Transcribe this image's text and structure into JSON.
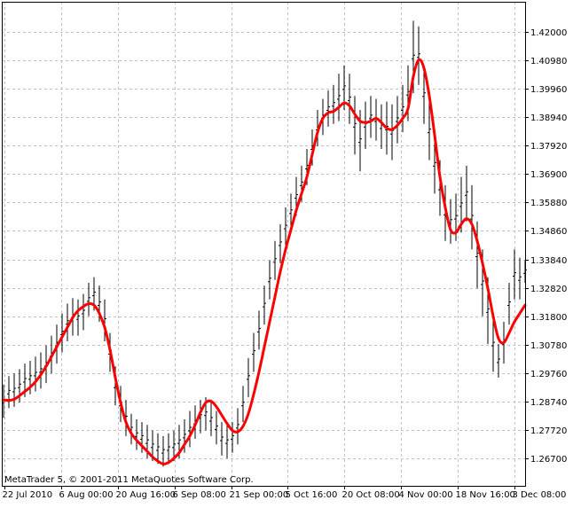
{
  "chart_data": {
    "type": "line",
    "copyright": "MetaTrader 5, © 2001-2011 MetaQuotes Software Corp.",
    "price_range": [
      1.259,
      1.426
    ],
    "y_ticks": [
      "1.42000",
      "1.40980",
      "1.39960",
      "1.38940",
      "1.37920",
      "1.36900",
      "1.35880",
      "1.34860",
      "1.33840",
      "1.32820",
      "1.31800",
      "1.30780",
      "1.29760",
      "1.28740",
      "1.27720",
      "1.26700"
    ],
    "x_ticks": [
      "22 Jul 2010",
      "6 Aug 00:00",
      "20 Aug 16:00",
      "6 Sep 08:00",
      "21 Sep 00:00",
      "5 Oct 16:00",
      "20 Oct 08:00",
      "4 Nov 00:00",
      "18 Nov 16:00",
      "3 Dec 08:00"
    ],
    "grid": true,
    "colors": {
      "price": "#000000",
      "average": "#ff0000",
      "grid": "#c0c0c0",
      "frame": "#000000"
    },
    "series": [
      {
        "kind": "bars",
        "high_low": [
          [
            1.2935,
            1.2815
          ],
          [
            1.2965,
            1.285
          ],
          [
            1.2975,
            1.2855
          ],
          [
            1.299,
            1.287
          ],
          [
            1.301,
            1.289
          ],
          [
            1.302,
            1.29
          ],
          [
            1.3035,
            1.291
          ],
          [
            1.305,
            1.292
          ],
          [
            1.3075,
            1.294
          ],
          [
            1.311,
            1.2975
          ],
          [
            1.315,
            1.301
          ],
          [
            1.319,
            1.305
          ],
          [
            1.3225,
            1.309
          ],
          [
            1.3245,
            1.311
          ],
          [
            1.324,
            1.311
          ],
          [
            1.326,
            1.313
          ],
          [
            1.33,
            1.318
          ],
          [
            1.332,
            1.32
          ],
          [
            1.329,
            1.316
          ],
          [
            1.324,
            1.309
          ],
          [
            1.312,
            1.298
          ],
          [
            1.3,
            1.286
          ],
          [
            1.293,
            1.28
          ],
          [
            1.288,
            1.275
          ],
          [
            1.283,
            1.272
          ],
          [
            1.281,
            1.27
          ],
          [
            1.28,
            1.269
          ],
          [
            1.279,
            1.267
          ],
          [
            1.277,
            1.266
          ],
          [
            1.276,
            1.265
          ],
          [
            1.275,
            1.264
          ],
          [
            1.276,
            1.265
          ],
          [
            1.277,
            1.266
          ],
          [
            1.279,
            1.267
          ],
          [
            1.281,
            1.269
          ],
          [
            1.284,
            1.271
          ],
          [
            1.286,
            1.274
          ],
          [
            1.288,
            1.276
          ],
          [
            1.289,
            1.277
          ],
          [
            1.287,
            1.275
          ],
          [
            1.284,
            1.272
          ],
          [
            1.28,
            1.268
          ],
          [
            1.279,
            1.267
          ],
          [
            1.28,
            1.269
          ],
          [
            1.285,
            1.272
          ],
          [
            1.293,
            1.28
          ],
          [
            1.303,
            1.289
          ],
          [
            1.312,
            1.298
          ],
          [
            1.32,
            1.306
          ],
          [
            1.329,
            1.315
          ],
          [
            1.338,
            1.324
          ],
          [
            1.345,
            1.331
          ],
          [
            1.351,
            1.337
          ],
          [
            1.357,
            1.343
          ],
          [
            1.362,
            1.349
          ],
          [
            1.368,
            1.354
          ],
          [
            1.372,
            1.359
          ],
          [
            1.378,
            1.365
          ],
          [
            1.385,
            1.372
          ],
          [
            1.392,
            1.379
          ],
          [
            1.396,
            1.383
          ],
          [
            1.399,
            1.386
          ],
          [
            1.401,
            1.387
          ],
          [
            1.405,
            1.388
          ],
          [
            1.408,
            1.392
          ],
          [
            1.405,
            1.387
          ],
          [
            1.397,
            1.376
          ],
          [
            1.392,
            1.37
          ],
          [
            1.395,
            1.378
          ],
          [
            1.397,
            1.382
          ],
          [
            1.396,
            1.381
          ],
          [
            1.394,
            1.378
          ],
          [
            1.395,
            1.376
          ],
          [
            1.394,
            1.374
          ],
          [
            1.397,
            1.38
          ],
          [
            1.401,
            1.384
          ],
          [
            1.408,
            1.388
          ],
          [
            1.424,
            1.398
          ],
          [
            1.422,
            1.401
          ],
          [
            1.408,
            1.387
          ],
          [
            1.395,
            1.374
          ],
          [
            1.383,
            1.362
          ],
          [
            1.374,
            1.354
          ],
          [
            1.365,
            1.345
          ],
          [
            1.36,
            1.344
          ],
          [
            1.362,
            1.345
          ],
          [
            1.368,
            1.348
          ],
          [
            1.372,
            1.352
          ],
          [
            1.365,
            1.342
          ],
          [
            1.352,
            1.328
          ],
          [
            1.342,
            1.318
          ],
          [
            1.332,
            1.308
          ],
          [
            1.318,
            1.298
          ],
          [
            1.308,
            1.296
          ],
          [
            1.316,
            1.301
          ],
          [
            1.33,
            1.315
          ],
          [
            1.342,
            1.324
          ],
          [
            1.339,
            1.324
          ],
          [
            1.338,
            1.33
          ]
        ]
      },
      {
        "kind": "line",
        "values": [
          1.288,
          1.2878,
          1.2882,
          1.2895,
          1.291,
          1.2925,
          1.2945,
          1.297,
          1.3,
          1.3035,
          1.307,
          1.3105,
          1.314,
          1.3175,
          1.32,
          1.3215,
          1.3225,
          1.322,
          1.319,
          1.314,
          1.306,
          1.296,
          1.287,
          1.28,
          1.276,
          1.2735,
          1.2715,
          1.2695,
          1.2675,
          1.266,
          1.265,
          1.2655,
          1.267,
          1.269,
          1.272,
          1.275,
          1.279,
          1.2835,
          1.287,
          1.2875,
          1.2855,
          1.2825,
          1.2795,
          1.277,
          1.2765,
          1.2785,
          1.283,
          1.29,
          1.298,
          1.307,
          1.316,
          1.325,
          1.334,
          1.342,
          1.349,
          1.356,
          1.362,
          1.368,
          1.376,
          1.384,
          1.389,
          1.391,
          1.3915,
          1.393,
          1.3945,
          1.3935,
          1.3905,
          1.388,
          1.3875,
          1.388,
          1.389,
          1.3875,
          1.3855,
          1.385,
          1.3865,
          1.389,
          1.3925,
          1.404,
          1.41,
          1.407,
          1.397,
          1.383,
          1.368,
          1.357,
          1.349,
          1.348,
          1.351,
          1.353,
          1.351,
          1.345,
          1.337,
          1.328,
          1.318,
          1.31,
          1.3085,
          1.312,
          1.316,
          1.319,
          1.322
        ]
      }
    ]
  }
}
